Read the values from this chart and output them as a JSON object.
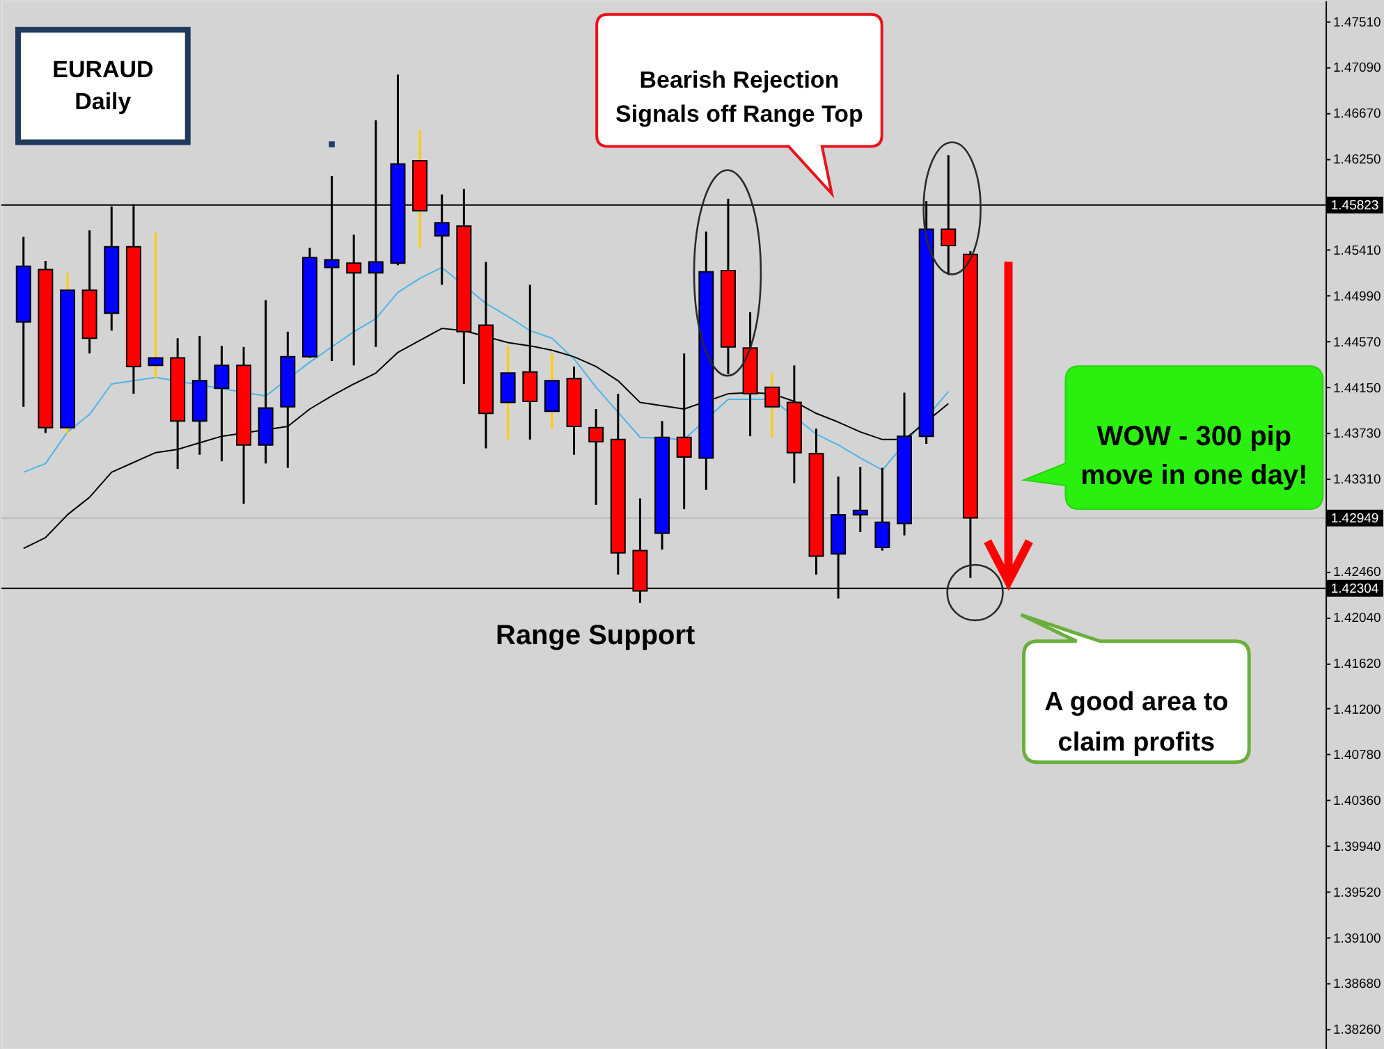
{
  "chart_data": {
    "type": "candlestick",
    "title": "EURAUD",
    "subtitle": "Daily",
    "categories": [
      null,
      null,
      null,
      null,
      null,
      null,
      null,
      null,
      null,
      null,
      null,
      null,
      null,
      null,
      null,
      null,
      null,
      null,
      null,
      null,
      null,
      null,
      null,
      null,
      null,
      null,
      null,
      null,
      null,
      null,
      null,
      null,
      null,
      null,
      null,
      null,
      null,
      null,
      null,
      null,
      null,
      null,
      null,
      null
    ],
    "series": [
      {
        "type": "candlestick",
        "color": "#000000",
        "ohlc": [
          [
            1.4475,
            1.4553,
            1.4397,
            1.4526
          ],
          [
            1.4523,
            1.4531,
            1.4373,
            1.4378
          ],
          null,
          [
            1.4504,
            1.4559,
            1.4446,
            1.446
          ],
          [
            1.4483,
            1.4581,
            1.4467,
            1.4544
          ],
          [
            1.4544,
            1.4583,
            1.4409,
            1.4434
          ],
          null,
          [
            1.4442,
            1.446,
            1.434,
            1.4384
          ],
          [
            1.4384,
            1.4462,
            1.4353,
            1.4421
          ],
          [
            1.4414,
            1.4453,
            1.4347,
            1.4435
          ],
          [
            1.4435,
            1.4452,
            1.4308,
            1.4362
          ],
          [
            1.4362,
            1.4495,
            1.4345,
            1.4396
          ],
          [
            1.4397,
            1.4466,
            1.4341,
            1.4443
          ],
          [
            1.4443,
            1.4543,
            1.4442,
            1.4534
          ],
          [
            1.4525,
            1.4609,
            1.4439,
            1.4532
          ],
          [
            1.4529,
            1.4555,
            1.4435,
            1.452
          ],
          [
            1.452,
            1.466,
            1.4452,
            1.453
          ],
          [
            1.4529,
            1.4702,
            1.4527,
            1.462
          ],
          null,
          [
            1.4554,
            1.4592,
            1.4509,
            1.4566
          ],
          [
            1.4563,
            1.4597,
            1.4418,
            1.4466
          ],
          [
            1.4472,
            1.453,
            1.4359,
            1.4391
          ],
          null,
          [
            1.4429,
            1.4509,
            1.4367,
            1.4402
          ],
          null,
          [
            1.4423,
            1.4434,
            1.4353,
            1.4379
          ],
          [
            1.4378,
            1.4395,
            1.4307,
            1.4365
          ],
          [
            1.4367,
            1.4409,
            1.4243,
            1.4263
          ],
          [
            1.4265,
            1.4313,
            1.4217,
            1.4228
          ],
          [
            1.4281,
            1.4384,
            1.4266,
            1.4369
          ],
          [
            1.4369,
            1.4446,
            1.4303,
            1.4351
          ],
          [
            1.435,
            1.4558,
            1.4321,
            1.4521
          ],
          [
            1.4522,
            1.4588,
            1.4427,
            1.4452
          ],
          [
            1.4451,
            1.4484,
            1.437,
            1.4409
          ],
          null,
          [
            1.4401,
            1.4435,
            1.4327,
            1.4355
          ],
          [
            1.4354,
            1.4377,
            1.4243,
            1.426
          ],
          [
            1.4262,
            1.4333,
            1.4221,
            1.4298
          ],
          [
            1.4298,
            1.4342,
            1.4282,
            1.4302
          ],
          [
            1.4268,
            1.4341,
            1.4265,
            1.4291
          ],
          [
            1.429,
            1.441,
            1.4279,
            1.437
          ],
          [
            1.437,
            1.4586,
            1.4363,
            1.456
          ],
          [
            1.456,
            1.4628,
            1.4518,
            1.4545
          ],
          [
            1.4537,
            1.454,
            1.424,
            1.4295
          ]
        ],
        "colors": [
          "#0000ff",
          "#ff0000",
          null,
          "#ff0000",
          "#0000ff",
          "#ff0000",
          null,
          "#ff0000",
          "#0000ff",
          "#0000ff",
          "#ff0000",
          "#0000ff",
          "#0000ff",
          "#0000ff",
          "#0000ff",
          "#ff0000",
          "#0000ff",
          "#0000ff",
          null,
          "#0000ff",
          "#ff0000",
          "#ff0000",
          null,
          "#ff0000",
          null,
          "#ff0000",
          "#ff0000",
          "#ff0000",
          "#ff0000",
          "#0000ff",
          "#ff0000",
          "#0000ff",
          "#ff0000",
          "#ff0000",
          null,
          "#ff0000",
          "#ff0000",
          "#0000ff",
          "#0000ff",
          "#0000ff",
          "#0000ff",
          "#0000ff",
          "#ff0000",
          "#ff0000"
        ]
      },
      {
        "type": "candlestick",
        "color": "#ffcc00",
        "ohlc": [
          null,
          null,
          [
            1.4378,
            1.452,
            1.4372,
            1.4504
          ],
          null,
          null,
          null,
          [
            1.4435,
            1.4557,
            1.4423,
            1.4442
          ],
          null,
          null,
          null,
          null,
          null,
          null,
          null,
          null,
          null,
          null,
          null,
          [
            1.4623,
            1.4651,
            1.4543,
            1.4577
          ],
          null,
          null,
          null,
          [
            1.4401,
            1.4453,
            1.4367,
            1.4428
          ],
          null,
          [
            1.4393,
            1.4446,
            1.4377,
            1.4421
          ],
          null,
          null,
          null,
          null,
          null,
          null,
          null,
          null,
          null,
          [
            1.4415,
            1.4428,
            1.4369,
            1.4397
          ],
          null,
          null,
          null,
          null,
          null,
          null,
          null,
          null,
          null
        ],
        "colors": [
          null,
          null,
          "#0000ff",
          null,
          null,
          null,
          "#0000ff",
          null,
          null,
          null,
          null,
          null,
          null,
          null,
          null,
          null,
          null,
          null,
          "#ff0000",
          null,
          null,
          null,
          "#0000ff",
          null,
          "#0000ff",
          null,
          null,
          null,
          null,
          null,
          null,
          null,
          null,
          null,
          "#ff0000",
          null,
          null,
          null,
          null,
          null,
          null,
          null,
          null,
          null
        ]
      },
      {
        "type": "line",
        "color": "#4ab6e8",
        "values": [
          1.4337,
          1.4345,
          1.4374,
          1.439,
          1.4418,
          1.4421,
          1.4424,
          null,
          null,
          null,
          null,
          1.4407,
          null,
          1.4438,
          1.4452,
          1.4466,
          1.4478,
          1.4502,
          1.4515,
          1.4525,
          null,
          1.4492,
          1.448,
          1.4467,
          1.446,
          1.4441,
          1.4415,
          1.4392,
          1.4369,
          null,
          1.4367,
          null,
          1.4404,
          1.4404,
          1.4404,
          null,
          1.4372,
          1.4362,
          1.435,
          1.4339,
          null,
          null,
          1.4411,
          null
        ]
      },
      {
        "type": "line",
        "color": "#000000",
        "values": [
          1.4267,
          1.4277,
          1.4298,
          1.4314,
          1.4337,
          1.4346,
          1.4355,
          1.4358,
          1.4364,
          1.437,
          null,
          null,
          1.4379,
          1.4395,
          1.4407,
          1.4418,
          1.4428,
          1.4447,
          1.4458,
          1.4469,
          1.4467,
          null,
          1.4456,
          1.4453,
          1.4449,
          1.4443,
          1.4434,
          1.4421,
          1.4401,
          1.4398,
          1.4395,
          null,
          1.4409,
          1.441,
          1.4409,
          1.4402,
          1.4391,
          1.4383,
          1.4374,
          1.4367,
          1.4367,
          null,
          1.44,
          null
        ]
      },
      {
        "type": "scatter",
        "color": "#1c3f6e",
        "marker": "square",
        "values": [
          null,
          null,
          null,
          null,
          null,
          null,
          null,
          null,
          null,
          null,
          null,
          null,
          null,
          null,
          1.4638,
          null,
          null,
          null,
          null,
          null,
          null,
          null,
          null,
          null,
          null,
          null,
          null,
          null,
          null,
          null,
          null,
          null,
          null,
          null,
          null,
          null,
          null,
          null,
          null,
          null,
          null,
          null,
          null,
          null
        ]
      }
    ],
    "ylim": [
      1.3808,
      1.477
    ],
    "yticks": [
      {
        "value": 1.4751,
        "label": "1.47510"
      },
      {
        "value": 1.4709,
        "label": "1.47090"
      },
      {
        "value": 1.4667,
        "label": "1.46670"
      },
      {
        "value": 1.4625,
        "label": "1.46250"
      },
      {
        "value": 1.4541,
        "label": "1.45410"
      },
      {
        "value": 1.4499,
        "label": "1.44990"
      },
      {
        "value": 1.4457,
        "label": "1.44570"
      },
      {
        "value": 1.4415,
        "label": "1.44150"
      },
      {
        "value": 1.4373,
        "label": "1.43730"
      },
      {
        "value": 1.4331,
        "label": "1.43310"
      },
      {
        "value": 1.4246,
        "label": "1.42460"
      },
      {
        "value": 1.4204,
        "label": "1.42040"
      },
      {
        "value": 1.4162,
        "label": "1.41620"
      },
      {
        "value": 1.412,
        "label": "1.41200"
      },
      {
        "value": 1.4078,
        "label": "1.40780"
      },
      {
        "value": 1.4036,
        "label": "1.40360"
      },
      {
        "value": 1.3994,
        "label": "1.39940"
      },
      {
        "value": 1.3952,
        "label": "1.39520"
      },
      {
        "value": 1.391,
        "label": "1.39100"
      },
      {
        "value": 1.3868,
        "label": "1.38680"
      },
      {
        "value": 1.3826,
        "label": "1.38260"
      }
    ],
    "ref_lines": [
      {
        "axis": "y",
        "value": 1.45823,
        "label": "1.45823",
        "color": "#000000"
      },
      {
        "axis": "y",
        "value": 1.42304,
        "label": "1.42304",
        "color": "#000000"
      },
      {
        "axis": "y",
        "value": 1.42949,
        "label": "1.42949",
        "color": "#b8b8b8"
      }
    ],
    "annotations": [
      "Bearish Rejection Signals off Range Top",
      "WOW - 300 pip move in one day!",
      "A good area to claim profits",
      {
        "text": "Range Support",
        "y": 1.42304
      }
    ]
  }
}
